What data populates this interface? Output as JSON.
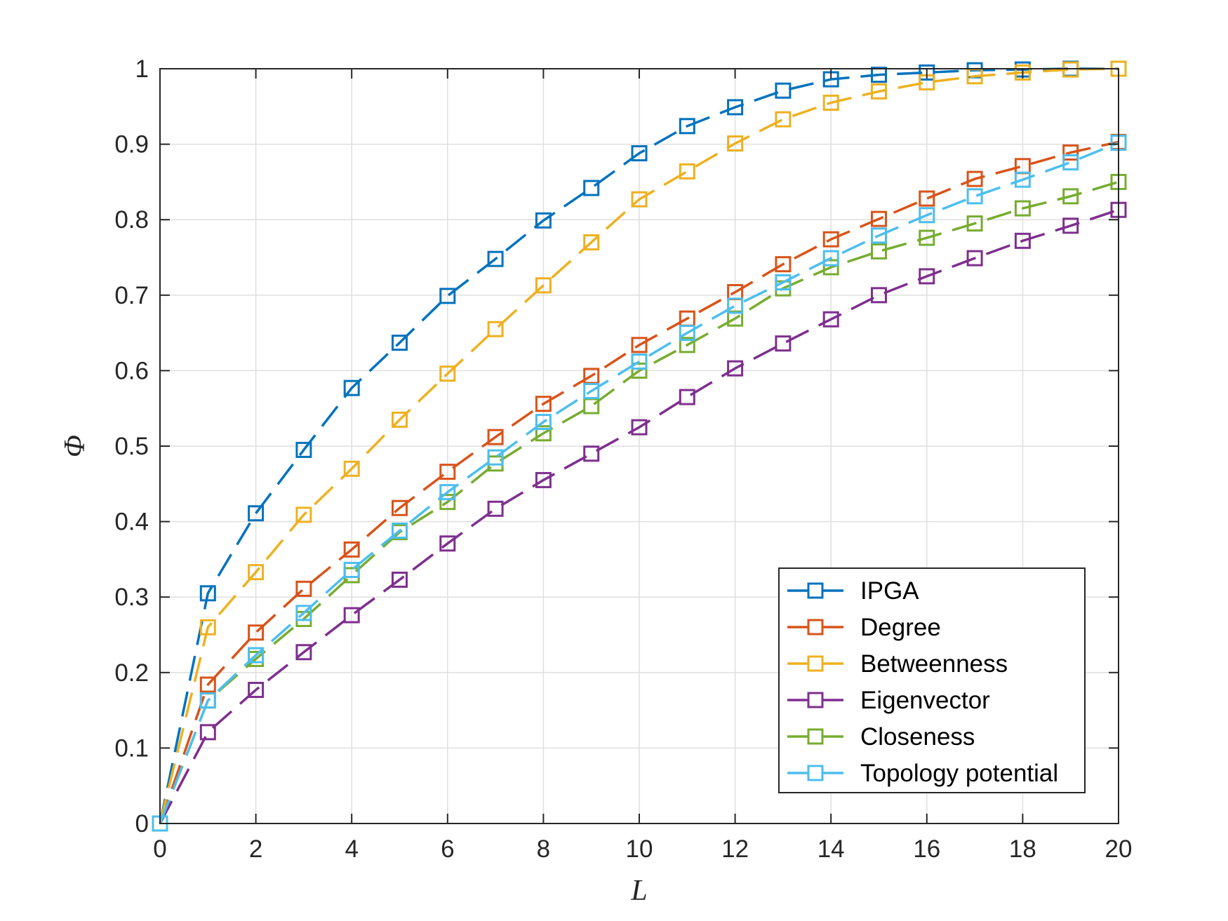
{
  "chart_data": {
    "type": "line",
    "title": "",
    "xlabel": "L",
    "ylabel": "Φ",
    "xlim": [
      0,
      20
    ],
    "ylim": [
      0,
      1
    ],
    "grid": true,
    "legend_position": "bottom-right",
    "x_ticks": [
      "0",
      "2",
      "4",
      "6",
      "8",
      "10",
      "12",
      "14",
      "16",
      "18",
      "20"
    ],
    "y_ticks": [
      "0",
      "0.1",
      "0.2",
      "0.3",
      "0.4",
      "0.5",
      "0.6",
      "0.7",
      "0.8",
      "0.9",
      "1"
    ],
    "x": [
      0,
      1,
      2,
      3,
      4,
      5,
      6,
      7,
      8,
      9,
      10,
      11,
      12,
      13,
      14,
      15,
      16,
      17,
      18,
      19,
      20
    ],
    "series": [
      {
        "name": "IPGA",
        "color": "#0072BD",
        "values": [
          0,
          0.305,
          0.411,
          0.495,
          0.577,
          0.637,
          0.699,
          0.748,
          0.799,
          0.842,
          0.888,
          0.924,
          0.949,
          0.971,
          0.986,
          0.992,
          0.995,
          0.998,
          0.999,
          1.0,
          1.0
        ]
      },
      {
        "name": "Degree",
        "color": "#D95319",
        "values": [
          0,
          0.184,
          0.253,
          0.311,
          0.363,
          0.418,
          0.466,
          0.512,
          0.556,
          0.593,
          0.634,
          0.669,
          0.704,
          0.741,
          0.774,
          0.801,
          0.828,
          0.854,
          0.871,
          0.889,
          0.903
        ]
      },
      {
        "name": "Betweenness",
        "color": "#EDB120",
        "values": [
          0,
          0.26,
          0.333,
          0.409,
          0.47,
          0.535,
          0.596,
          0.655,
          0.713,
          0.77,
          0.827,
          0.864,
          0.901,
          0.933,
          0.955,
          0.97,
          0.982,
          0.99,
          0.995,
          0.999,
          1.0
        ]
      },
      {
        "name": "Eigenvector",
        "color": "#7E2F8E",
        "values": [
          0,
          0.121,
          0.177,
          0.227,
          0.276,
          0.323,
          0.371,
          0.417,
          0.455,
          0.49,
          0.525,
          0.565,
          0.603,
          0.636,
          0.668,
          0.7,
          0.725,
          0.749,
          0.772,
          0.792,
          0.813
        ]
      },
      {
        "name": "Closeness",
        "color": "#77AC30",
        "values": [
          0,
          0.163,
          0.218,
          0.271,
          0.329,
          0.386,
          0.426,
          0.477,
          0.517,
          0.553,
          0.6,
          0.634,
          0.669,
          0.709,
          0.737,
          0.758,
          0.776,
          0.795,
          0.815,
          0.831,
          0.85
        ]
      },
      {
        "name": "Topology potential",
        "color": "#4DBEEE",
        "values": [
          0,
          0.163,
          0.223,
          0.279,
          0.336,
          0.388,
          0.439,
          0.485,
          0.532,
          0.573,
          0.612,
          0.65,
          0.686,
          0.717,
          0.749,
          0.779,
          0.806,
          0.831,
          0.853,
          0.876,
          0.902
        ]
      }
    ]
  }
}
